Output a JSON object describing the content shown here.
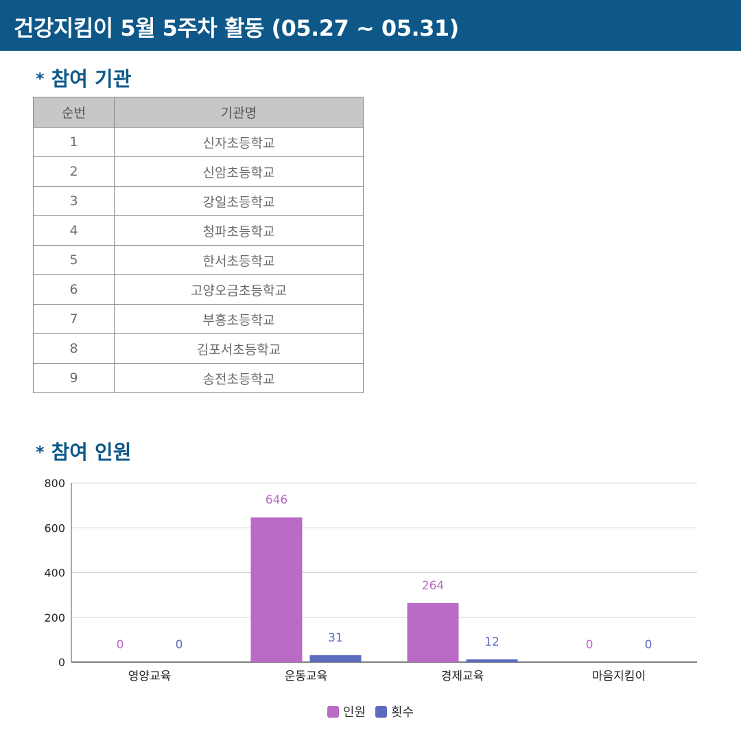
{
  "header": {
    "title": "건강지킴이 5월 5주차 활동 (05.27 ~ 05.31)"
  },
  "sections": {
    "institutions_title": "참여 기관",
    "participants_title": "참여 인원",
    "bullet": "*"
  },
  "table": {
    "headers": [
      "순번",
      "기관명"
    ],
    "rows": [
      [
        "1",
        "신자초등학교"
      ],
      [
        "2",
        "신암초등학교"
      ],
      [
        "3",
        "강일초등학교"
      ],
      [
        "4",
        "청파초등학교"
      ],
      [
        "5",
        "한서초등학교"
      ],
      [
        "6",
        "고양오금초등학교"
      ],
      [
        "7",
        "부흥초등학교"
      ],
      [
        "8",
        "김포서초등학교"
      ],
      [
        "9",
        "송전초등학교"
      ]
    ]
  },
  "chart_data": {
    "type": "bar",
    "categories": [
      "영양교육",
      "운동교육",
      "경제교육",
      "마음지킴이"
    ],
    "series": [
      {
        "name": "인원",
        "values": [
          0,
          646,
          264,
          0
        ],
        "color": "#ba6bc6"
      },
      {
        "name": "횟수",
        "values": [
          0,
          31,
          12,
          0
        ],
        "color": "#5c6bc0"
      }
    ],
    "yticks": [
      "0",
      "200",
      "400",
      "600",
      "800"
    ],
    "ylim": [
      0,
      800
    ],
    "grid": true,
    "legend": "bottom-center"
  }
}
